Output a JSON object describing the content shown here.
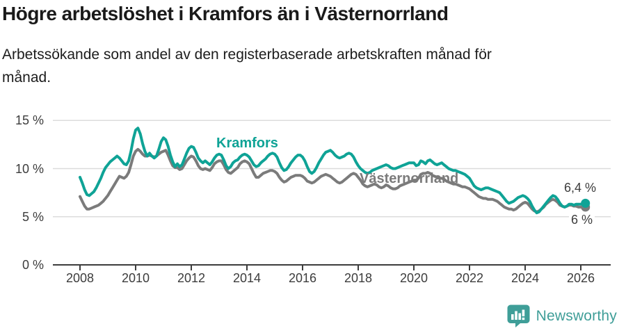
{
  "title": "Högre arbetslöshet i Kramfors än i Västernorrland",
  "subtitle": "Arbetssökande som andel av den registerbaserade arbetskraften månad för månad.",
  "footer": {
    "brand": "Newsworthy",
    "logo_icon": "bar-chart-speech-bubble-icon"
  },
  "colors": {
    "kramfors": "#0fa396",
    "vasternorrland": "#7b7b7b",
    "grid": "#dcdcdc",
    "axis": "#3c3c3c",
    "axis_text": "#3c3c3c",
    "title_text": "#1a1a1a",
    "logo_teal": "#3f9e98"
  },
  "chart_data": {
    "type": "line",
    "title": "Högre arbetslöshet i Kramfors än i Västernorrland",
    "subtitle": "Arbetssökande som andel av den registerbaserade arbetskraften månad för månad.",
    "x_start": "2008-01",
    "x_end": "2026-03",
    "x_interval": "monthly",
    "ylim": [
      0,
      15
    ],
    "grid": true,
    "y_ticks": [
      {
        "value": 0,
        "label": "0 %"
      },
      {
        "value": 5,
        "label": "5 %"
      },
      {
        "value": 10,
        "label": "10 %"
      },
      {
        "value": 15,
        "label": "15 %"
      }
    ],
    "x_ticks": [
      {
        "year": 2008,
        "label": "2008"
      },
      {
        "year": 2010,
        "label": "2010"
      },
      {
        "year": 2012,
        "label": "2012"
      },
      {
        "year": 2014,
        "label": "2014"
      },
      {
        "year": 2016,
        "label": "2016"
      },
      {
        "year": 2018,
        "label": "2018"
      },
      {
        "year": 2020,
        "label": "2020"
      },
      {
        "year": 2022,
        "label": "2022"
      },
      {
        "year": 2024,
        "label": "2024"
      },
      {
        "year": 2026,
        "label": "2026"
      }
    ],
    "series": [
      {
        "name": "Kramfors",
        "color": "#0fa396",
        "end_label": "6,4 %",
        "end_value": 6.4,
        "values": [
          9.1,
          8.5,
          7.8,
          7.3,
          7.2,
          7.4,
          7.6,
          8.0,
          8.5,
          9.0,
          9.6,
          10.1,
          10.4,
          10.7,
          10.9,
          11.1,
          11.3,
          11.1,
          10.8,
          10.5,
          10.4,
          10.8,
          11.8,
          13.1,
          14.0,
          14.2,
          13.6,
          12.6,
          11.8,
          11.3,
          11.6,
          11.3,
          11.1,
          11.3,
          12.0,
          12.8,
          13.2,
          13.0,
          12.3,
          11.4,
          10.7,
          10.2,
          10.5,
          10.2,
          10.4,
          11.0,
          11.6,
          12.1,
          12.3,
          12.2,
          11.7,
          11.1,
          10.8,
          10.6,
          10.8,
          10.6,
          10.4,
          10.7,
          11.1,
          11.4,
          11.5,
          11.4,
          10.9,
          10.3,
          10.0,
          10.2,
          10.6,
          10.8,
          10.9,
          11.2,
          11.4,
          11.5,
          11.4,
          11.2,
          10.8,
          10.4,
          10.2,
          10.3,
          10.6,
          10.8,
          11.0,
          11.3,
          11.5,
          11.6,
          11.5,
          11.2,
          10.6,
          10.1,
          9.8,
          9.9,
          10.2,
          10.6,
          10.9,
          11.2,
          11.4,
          11.4,
          11.2,
          10.8,
          10.2,
          9.7,
          9.5,
          9.7,
          10.1,
          10.6,
          11.0,
          11.4,
          11.7,
          11.8,
          11.9,
          11.7,
          11.4,
          11.2,
          11.1,
          11.2,
          11.3,
          11.5,
          11.6,
          11.5,
          11.2,
          10.7,
          10.3,
          10.0,
          9.8,
          9.6,
          9.5,
          9.6,
          9.8,
          9.9,
          10.0,
          10.1,
          10.2,
          10.3,
          10.4,
          10.3,
          10.1,
          10.0,
          10.0,
          10.1,
          10.2,
          10.3,
          10.4,
          10.5,
          10.6,
          10.6,
          10.6,
          10.3,
          10.4,
          10.8,
          10.7,
          10.5,
          10.8,
          10.9,
          10.7,
          10.5,
          10.4,
          10.5,
          10.6,
          10.4,
          10.2,
          10.0,
          9.9,
          9.8,
          9.8,
          9.7,
          9.6,
          9.5,
          9.4,
          9.2,
          9.0,
          8.6,
          8.2,
          8.0,
          7.9,
          7.8,
          7.9,
          8.0,
          8.0,
          7.9,
          7.8,
          7.7,
          7.6,
          7.5,
          7.2,
          6.9,
          6.6,
          6.4,
          6.5,
          6.6,
          6.8,
          7.0,
          7.1,
          7.2,
          7.1,
          6.9,
          6.6,
          6.1,
          5.7,
          5.4,
          5.5,
          5.8,
          6.1,
          6.4,
          6.7,
          7.0,
          7.2,
          7.1,
          6.8,
          6.4,
          6.1,
          6.0,
          6.1,
          6.3,
          6.3,
          6.2,
          6.3,
          6.3,
          6.3,
          6.4,
          6.4
        ]
      },
      {
        "name": "Västernorrland",
        "color": "#7b7b7b",
        "end_label": "6 %",
        "end_value": 6.0,
        "values": [
          7.1,
          6.6,
          6.1,
          5.8,
          5.8,
          5.9,
          6.0,
          6.1,
          6.2,
          6.4,
          6.6,
          6.9,
          7.2,
          7.6,
          8.0,
          8.4,
          8.8,
          9.2,
          9.1,
          9.0,
          9.2,
          9.6,
          10.4,
          11.3,
          11.8,
          12.0,
          11.8,
          11.5,
          11.3,
          11.3,
          11.4,
          11.3,
          11.2,
          11.3,
          11.5,
          11.7,
          11.8,
          11.9,
          11.4,
          10.8,
          10.3,
          10.1,
          10.1,
          9.9,
          10.0,
          10.4,
          10.8,
          11.1,
          11.3,
          11.2,
          10.8,
          10.3,
          10.0,
          9.9,
          10.0,
          9.9,
          9.8,
          10.1,
          10.5,
          10.7,
          10.8,
          10.8,
          10.4,
          9.9,
          9.6,
          9.5,
          9.7,
          9.9,
          10.1,
          10.5,
          10.7,
          10.8,
          10.7,
          10.5,
          10.0,
          9.5,
          9.1,
          9.1,
          9.3,
          9.5,
          9.6,
          9.7,
          9.8,
          9.8,
          9.7,
          9.5,
          9.1,
          8.8,
          8.6,
          8.7,
          8.9,
          9.1,
          9.2,
          9.3,
          9.3,
          9.3,
          9.2,
          9.0,
          8.7,
          8.6,
          8.5,
          8.6,
          8.8,
          9.0,
          9.2,
          9.3,
          9.4,
          9.3,
          9.2,
          9.0,
          8.8,
          8.6,
          8.5,
          8.6,
          8.8,
          9.0,
          9.2,
          9.4,
          9.5,
          9.4,
          9.1,
          8.8,
          8.4,
          8.2,
          8.1,
          8.2,
          8.3,
          8.4,
          8.3,
          8.1,
          8.0,
          8.1,
          8.3,
          8.2,
          8.0,
          7.9,
          7.9,
          8.0,
          8.2,
          8.3,
          8.4,
          8.5,
          8.6,
          8.7,
          8.8,
          8.8,
          9.0,
          9.4,
          9.5,
          9.5,
          9.6,
          9.5,
          9.3,
          9.2,
          9.1,
          9.0,
          9.0,
          8.9,
          8.7,
          8.6,
          8.5,
          8.4,
          8.4,
          8.3,
          8.2,
          8.1,
          8.1,
          8.0,
          7.9,
          7.7,
          7.5,
          7.3,
          7.1,
          7.0,
          6.9,
          6.9,
          6.8,
          6.8,
          6.8,
          6.7,
          6.6,
          6.4,
          6.2,
          6.0,
          5.9,
          5.8,
          5.8,
          5.7,
          5.8,
          6.0,
          6.2,
          6.4,
          6.5,
          6.4,
          6.1,
          5.8,
          5.6,
          5.5,
          5.6,
          5.8,
          6.0,
          6.3,
          6.5,
          6.7,
          6.8,
          6.7,
          6.5,
          6.2,
          6.1,
          6.0,
          6.1,
          6.2,
          6.2,
          6.1,
          6.1,
          6.0,
          6.0,
          6.0,
          6.0
        ]
      }
    ]
  }
}
